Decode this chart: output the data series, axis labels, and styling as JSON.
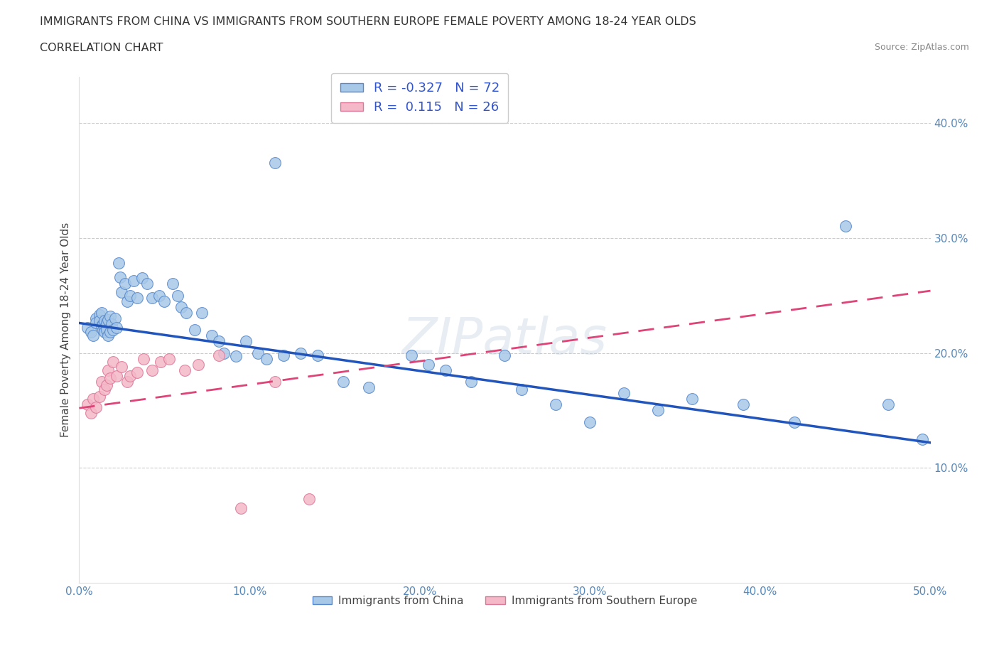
{
  "title_line1": "IMMIGRANTS FROM CHINA VS IMMIGRANTS FROM SOUTHERN EUROPE FEMALE POVERTY AMONG 18-24 YEAR OLDS",
  "title_line2": "CORRELATION CHART",
  "source_text": "Source: ZipAtlas.com",
  "ylabel": "Female Poverty Among 18-24 Year Olds",
  "xlim": [
    0.0,
    0.5
  ],
  "ylim": [
    0.0,
    0.44
  ],
  "xtick_vals": [
    0.0,
    0.1,
    0.2,
    0.3,
    0.4,
    0.5
  ],
  "xtick_labels": [
    "0.0%",
    "10.0%",
    "20.0%",
    "30.0%",
    "40.0%",
    "50.0%"
  ],
  "ytick_vals": [
    0.1,
    0.2,
    0.3,
    0.4
  ],
  "ytick_labels": [
    "10.0%",
    "20.0%",
    "30.0%",
    "40.0%"
  ],
  "china_color": "#a8c8e8",
  "china_edge": "#5588cc",
  "se_color": "#f4b8c8",
  "se_edge": "#dd7799",
  "trend_china_color": "#2255bb",
  "trend_se_color": "#dd4477",
  "R_china": -0.327,
  "N_china": 72,
  "R_se": 0.115,
  "N_se": 26,
  "china_trend_x": [
    0.0,
    0.5
  ],
  "china_trend_y": [
    0.226,
    0.122
  ],
  "se_trend_x": [
    0.0,
    0.5
  ],
  "se_trend_y": [
    0.152,
    0.254
  ],
  "china_x": [
    0.005,
    0.007,
    0.008,
    0.01,
    0.01,
    0.012,
    0.012,
    0.013,
    0.013,
    0.014,
    0.014,
    0.015,
    0.015,
    0.015,
    0.016,
    0.016,
    0.017,
    0.017,
    0.018,
    0.018,
    0.019,
    0.02,
    0.021,
    0.022,
    0.023,
    0.024,
    0.025,
    0.027,
    0.028,
    0.03,
    0.032,
    0.034,
    0.037,
    0.04,
    0.043,
    0.047,
    0.05,
    0.055,
    0.058,
    0.06,
    0.063,
    0.068,
    0.072,
    0.078,
    0.082,
    0.085,
    0.092,
    0.098,
    0.105,
    0.11,
    0.115,
    0.12,
    0.13,
    0.14,
    0.155,
    0.17,
    0.195,
    0.205,
    0.215,
    0.23,
    0.25,
    0.26,
    0.28,
    0.3,
    0.32,
    0.34,
    0.36,
    0.39,
    0.42,
    0.45,
    0.475,
    0.495
  ],
  "china_y": [
    0.222,
    0.218,
    0.215,
    0.23,
    0.226,
    0.233,
    0.228,
    0.224,
    0.235,
    0.22,
    0.225,
    0.228,
    0.222,
    0.218,
    0.226,
    0.22,
    0.229,
    0.215,
    0.232,
    0.218,
    0.225,
    0.22,
    0.23,
    0.222,
    0.278,
    0.266,
    0.253,
    0.26,
    0.245,
    0.25,
    0.263,
    0.248,
    0.265,
    0.26,
    0.248,
    0.25,
    0.245,
    0.26,
    0.25,
    0.24,
    0.235,
    0.22,
    0.235,
    0.215,
    0.21,
    0.2,
    0.197,
    0.21,
    0.2,
    0.195,
    0.365,
    0.198,
    0.2,
    0.198,
    0.175,
    0.17,
    0.198,
    0.19,
    0.185,
    0.175,
    0.198,
    0.168,
    0.155,
    0.14,
    0.165,
    0.15,
    0.16,
    0.155,
    0.14,
    0.31,
    0.155,
    0.125
  ],
  "se_x": [
    0.005,
    0.007,
    0.008,
    0.01,
    0.012,
    0.013,
    0.015,
    0.016,
    0.017,
    0.018,
    0.02,
    0.022,
    0.025,
    0.028,
    0.03,
    0.034,
    0.038,
    0.043,
    0.048,
    0.053,
    0.062,
    0.07,
    0.082,
    0.095,
    0.115,
    0.135
  ],
  "se_y": [
    0.155,
    0.148,
    0.16,
    0.153,
    0.162,
    0.175,
    0.168,
    0.172,
    0.185,
    0.178,
    0.192,
    0.18,
    0.188,
    0.175,
    0.18,
    0.183,
    0.195,
    0.185,
    0.192,
    0.195,
    0.185,
    0.19,
    0.198,
    0.065,
    0.175,
    0.073
  ]
}
